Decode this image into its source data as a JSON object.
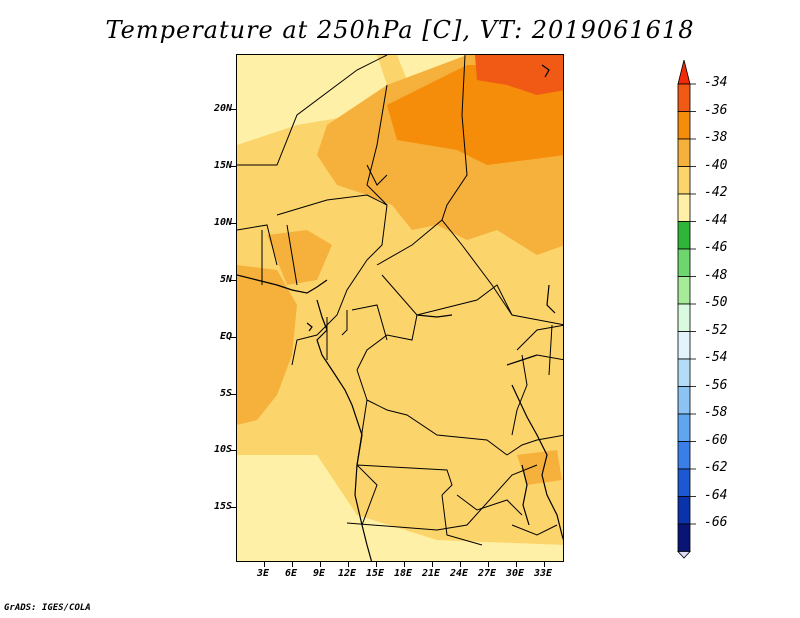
{
  "title": "Temperature at 250hPa [C], VT: 2019061618",
  "footer": "GrADS: IGES/COLA",
  "y_ticks": [
    "20N",
    "15N",
    "10N",
    "5N",
    "EQ",
    "5S",
    "10S",
    "15S"
  ],
  "x_ticks": [
    "3E",
    "6E",
    "9E",
    "12E",
    "15E",
    "18E",
    "21E",
    "24E",
    "27E",
    "30E",
    "33E"
  ],
  "colorbar": {
    "labels": [
      "-34",
      "-36",
      "-38",
      "-40",
      "-42",
      "-44",
      "-46",
      "-48",
      "-50",
      "-52",
      "-54",
      "-56",
      "-58",
      "-60",
      "-62",
      "-64",
      "-66"
    ],
    "colors": [
      "#f05a14",
      "#f58c0a",
      "#f6b03c",
      "#fcd46c",
      "#fef0a6",
      "#2fb53a",
      "#6ed66e",
      "#a6eb9a",
      "#dafadf",
      "#e4f4fc",
      "#b5dcf6",
      "#8cc3f3",
      "#5fa5ef",
      "#3a7ee8",
      "#1c58d2",
      "#0a32aa",
      "#0a1474"
    ],
    "top_arrow_color": "#f02a0a",
    "bottom_arrow_color": "#e0dcf8"
  },
  "chart_data": {
    "type": "heatmap",
    "title": "Temperature at 250hPa [C], VT: 2019061618",
    "units": "C",
    "lon_range": [
      0,
      35
    ],
    "lat_range": [
      -20,
      25
    ],
    "fields": [
      {
        "name": "background",
        "value_band": [
          -42,
          -40
        ],
        "color": "#fcd46c"
      },
      {
        "name": "north-central-warm",
        "value_band": [
          -40,
          -38
        ],
        "color": "#f6b03c"
      },
      {
        "name": "north-center-warmer",
        "value_band": [
          -38,
          -36
        ],
        "color": "#f58c0a"
      },
      {
        "name": "northeast-corner-warmest",
        "value_band": [
          -36,
          -34
        ],
        "color": "#f05a14"
      },
      {
        "name": "southwest-cool",
        "value_band": [
          -44,
          -42
        ],
        "color": "#fef0a6"
      },
      {
        "name": "atlantic-warm-tongue",
        "value_band": [
          -40,
          -38
        ],
        "color": "#f6b03c"
      }
    ]
  }
}
